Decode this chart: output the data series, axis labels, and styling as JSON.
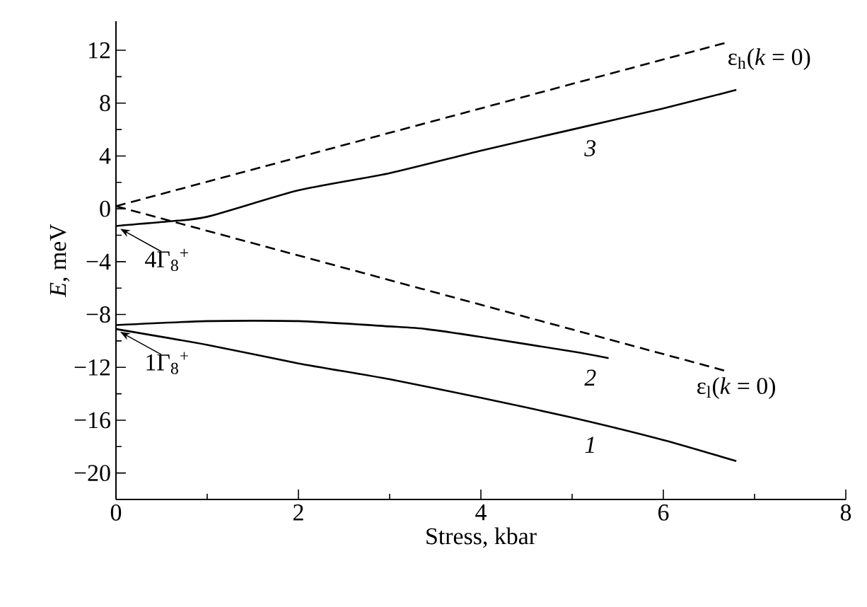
{
  "chart_data": {
    "type": "line",
    "xlabel": "Stress, kbar",
    "ylabel": "*E*, meV",
    "xlim": [
      0,
      8
    ],
    "ylim": [
      -22,
      14.2
    ],
    "xticks": [
      0,
      {
        "value": 1,
        "label": null
      },
      2,
      {
        "value": 3,
        "label": null
      },
      4,
      {
        "value": 5,
        "label": null
      },
      6,
      {
        "value": 7,
        "label": null
      },
      8
    ],
    "yticks": [
      {
        "value": -20,
        "label": "−20"
      },
      {
        "value": -18,
        "label": null
      },
      {
        "value": -16,
        "label": "−16"
      },
      {
        "value": -14,
        "label": null
      },
      {
        "value": -12,
        "label": "−12"
      },
      {
        "value": -10,
        "label": null
      },
      {
        "value": -8,
        "label": "−8"
      },
      {
        "value": -6,
        "label": null
      },
      {
        "value": -4,
        "label": "−4"
      },
      {
        "value": -2,
        "label": null
      },
      0,
      {
        "value": 2,
        "label": null
      },
      4,
      {
        "value": 6,
        "label": null
      },
      8,
      {
        "value": 10,
        "label": null
      },
      12
    ],
    "series": [
      {
        "name": "ε$_{h}$(*k* = 0)",
        "color": "#000000",
        "line_style": "dashed",
        "x": [
          0,
          6.7
        ],
        "values": [
          0.2,
          12.6
        ]
      },
      {
        "name": "ε$_{l}$(*k* = 0)",
        "color": "#000000",
        "line_style": "dashed",
        "x": [
          0,
          6.7
        ],
        "values": [
          0.2,
          -12.3
        ]
      },
      {
        "name": "3",
        "color": "#000000",
        "line_style": "solid",
        "x": [
          0,
          0.5,
          1,
          2,
          3,
          4,
          5,
          6,
          6.8
        ],
        "values": [
          -1.3,
          -1.0,
          -0.6,
          1.4,
          2.7,
          4.4,
          6.0,
          7.6,
          9.0
        ]
      },
      {
        "name": "2",
        "color": "#000000",
        "line_style": "solid",
        "x": [
          0,
          1,
          2,
          3,
          3.4,
          4,
          5,
          5.4
        ],
        "values": [
          -8.8,
          -8.5,
          -8.5,
          -8.9,
          -9.1,
          -9.7,
          -10.8,
          -11.3
        ]
      },
      {
        "name": "1",
        "color": "#000000",
        "line_style": "solid",
        "x": [
          0,
          1,
          2,
          3,
          4,
          5,
          6,
          6.8
        ],
        "values": [
          -9.1,
          -10.3,
          -11.7,
          -12.9,
          -14.3,
          -15.8,
          -17.5,
          -19.1
        ]
      }
    ],
    "annotations": [
      {
        "text": "4Γ$_{8}$$^{+}$",
        "x": 0,
        "y": -1.3
      },
      {
        "text": "1Γ$_{8}$$^{+}$",
        "x": 0,
        "y": -9.1
      }
    ],
    "grid": false
  }
}
